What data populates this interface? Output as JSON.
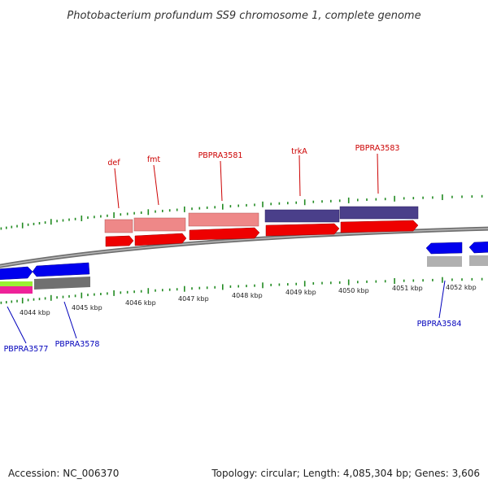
{
  "title": "Photobacterium profundum SS9 chromosome 1, complete genome",
  "footer": {
    "accession": "Accession: NC_006370",
    "summary": "Topology: circular; Length: 4,085,304 bp; Genes: 3,606"
  },
  "colors": {
    "forward_label": "#cc0000",
    "reverse_label": "#0000bb",
    "tick": "#228b22",
    "backbone": "#808080",
    "cds_red": "#ee0000",
    "pink": "#ee8888",
    "purple": "#4a3f8a",
    "blue": "#0000ee",
    "grey": "#b0b0b0",
    "dark_grey": "#707070",
    "lime": "#99ee33",
    "magenta": "#ee2299"
  },
  "chart_data": {
    "type": "genome-map",
    "scale_unit": "kbp",
    "position_labels": [
      "4044 kbp",
      "4045 kbp",
      "4046 kbp",
      "4047 kbp",
      "4048 kbp",
      "4049 kbp",
      "4050 kbp",
      "4051 kbp",
      "4052 kbp"
    ],
    "forward_genes": [
      {
        "name": "def",
        "color": "pink"
      },
      {
        "name": "fmt",
        "color": "pink"
      },
      {
        "name": "PBPRA3581",
        "color": "pink"
      },
      {
        "name": "trkA",
        "color": "purple"
      },
      {
        "name": "PBPRA3583",
        "color": "purple"
      }
    ],
    "reverse_genes": [
      {
        "name": "PBPRA3577"
      },
      {
        "name": "PBPRA3578"
      },
      {
        "name": "PBPRA3584"
      }
    ]
  }
}
